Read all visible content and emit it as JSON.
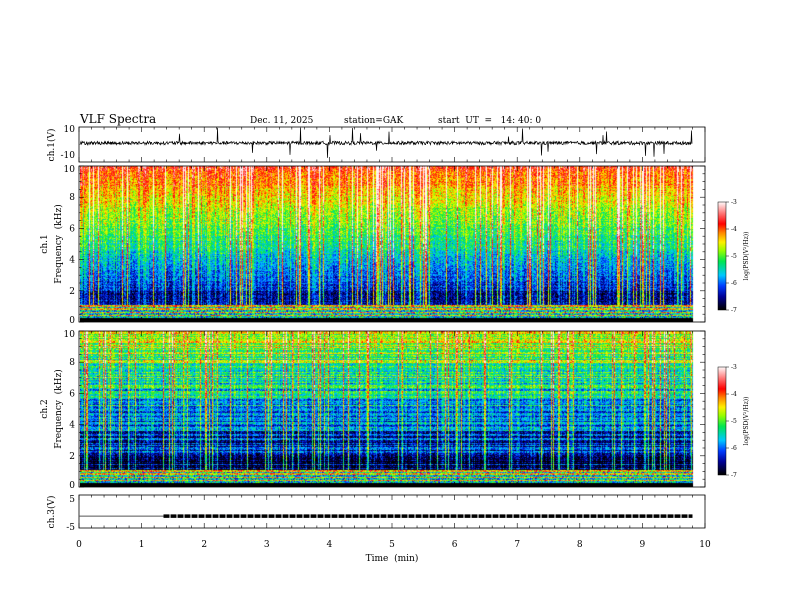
{
  "header": {
    "title": "VLF Spectra",
    "date": "Dec. 11, 2025",
    "station": "station=GAK",
    "start_ut": "start  UT  =   14: 40: 0"
  },
  "chart_data": [
    {
      "type": "line",
      "name": "ch1-waveform",
      "ylabel": "ch.1(V)",
      "ylim": [
        -10,
        10
      ],
      "yticks": [
        "10",
        "-10"
      ],
      "xlim": [
        0,
        10
      ],
      "data_end_min": 9.8,
      "description_values": {
        "baseline_v": 0,
        "typical_noise_v": 1.5,
        "spike_max_v": 10
      }
    },
    {
      "type": "heatmap",
      "name": "ch1-spectrogram",
      "ylabel": "ch.1\nFrequency (kHz)",
      "ylabel_line1": "ch.1",
      "ylabel_line2": "Frequency  (kHz)",
      "ylim": [
        0,
        10
      ],
      "yticks": [
        "0",
        "2",
        "4",
        "6",
        "8",
        "10"
      ],
      "xlim": [
        0,
        10
      ],
      "zlim": [
        -7,
        -3
      ],
      "colorbar_label": "log(PSD(V²/Hz))",
      "colorbar_ticks": [
        "-3",
        "-4",
        "-5",
        "-6",
        "-7"
      ],
      "level_at_2khz": -6.2,
      "level_at_10khz": -3.7
    },
    {
      "type": "heatmap",
      "name": "ch2-spectrogram",
      "ylabel_line1": "ch.2",
      "ylabel_line2": "Frequency  (kHz)",
      "ylim": [
        0,
        10
      ],
      "yticks": [
        "0",
        "2",
        "4",
        "6",
        "8",
        "10"
      ],
      "xlim": [
        0,
        10
      ],
      "zlim": [
        -7,
        -3
      ],
      "colorbar_label": "log(PSD(V²/Hz))",
      "colorbar_ticks": [
        "-3",
        "-4",
        "-5",
        "-6",
        "-7"
      ],
      "level_at_2khz": -6.4,
      "level_at_10khz": -4.5
    },
    {
      "type": "line",
      "name": "ch3-voltage",
      "ylabel": "ch.3(V)",
      "ylim": [
        -5,
        5
      ],
      "yticks": [
        "5",
        "-5"
      ],
      "x": [
        0,
        1.35,
        1.35,
        9.8
      ],
      "y": [
        -1.5,
        -1.5,
        -1.5,
        -1.5
      ],
      "xlabel": "Time  (min)",
      "xticks": [
        "0",
        "1",
        "2",
        "3",
        "4",
        "5",
        "6",
        "7",
        "8",
        "9",
        "10"
      ]
    }
  ]
}
